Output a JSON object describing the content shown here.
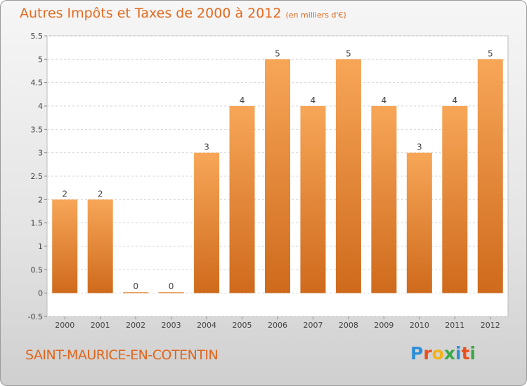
{
  "header": {
    "title": "Autres Impôts et Taxes de 2000 à 2012",
    "subtitle": "(en milliers d'€)"
  },
  "footer": {
    "commune": "SAINT-MAURICE-EN-COTENTIN",
    "logo_text": "Proxiti"
  },
  "colors": {
    "title": "#e26a1e",
    "bar_light": "#f7a658",
    "bar_dark": "#cf6a1c"
  },
  "chart_data": {
    "type": "bar",
    "title": "Autres Impôts et Taxes de 2000 à 2012",
    "subtitle": "(en milliers d'€)",
    "categories": [
      "2000",
      "2001",
      "2002",
      "2003",
      "2004",
      "2005",
      "2006",
      "2007",
      "2008",
      "2009",
      "2010",
      "2011",
      "2012"
    ],
    "values": [
      2,
      2,
      0,
      0,
      3,
      4,
      5,
      4,
      5,
      4,
      3,
      4,
      5
    ],
    "data_labels": [
      "2",
      "2",
      "0",
      "0",
      "3",
      "4",
      "5",
      "4",
      "5",
      "4",
      "3",
      "4",
      "5"
    ],
    "yticks": [
      "-0.5",
      "0",
      "0.5",
      "1",
      "1.5",
      "2",
      "2.5",
      "3",
      "3.5",
      "4",
      "4.5",
      "5",
      "5.5"
    ],
    "ylim": [
      -0.5,
      5.5
    ],
    "grid": true,
    "legend": "none"
  }
}
